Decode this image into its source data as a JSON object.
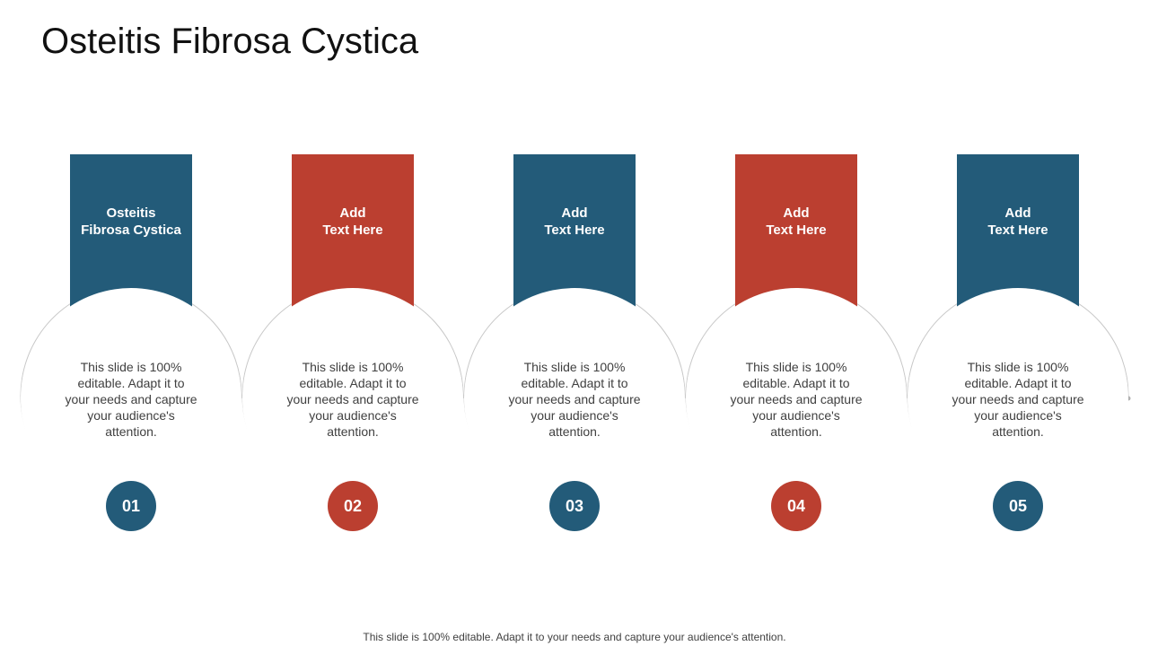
{
  "title": "Osteitis Fibrosa Cystica",
  "colors": {
    "blue": "#235b79",
    "red": "#bb3f30",
    "line": "#c8c8c8"
  },
  "steps": [
    {
      "heading": "Osteitis\nFibrosa Cystica",
      "text": "This slide is 100% editable. Adapt it to your needs and capture your audience's attention.",
      "number": "01",
      "color": "blue"
    },
    {
      "heading": "Add\nText Here",
      "text": "This slide is 100% editable. Adapt it to your needs and capture your audience's attention.",
      "number": "02",
      "color": "red"
    },
    {
      "heading": "Add\nText Here",
      "text": "This slide is 100% editable. Adapt it to your needs and capture your audience's attention.",
      "number": "03",
      "color": "blue"
    },
    {
      "heading": "Add\nText Here",
      "text": "This slide is 100% editable. Adapt it to your needs and capture your audience's attention.",
      "number": "04",
      "color": "red"
    },
    {
      "heading": "Add\nText Here",
      "text": "This slide is 100% editable. Adapt it to your needs and capture your audience's attention.",
      "number": "05",
      "color": "blue"
    }
  ],
  "footer": "This slide is 100% editable. Adapt it to your needs and capture your audience's attention."
}
